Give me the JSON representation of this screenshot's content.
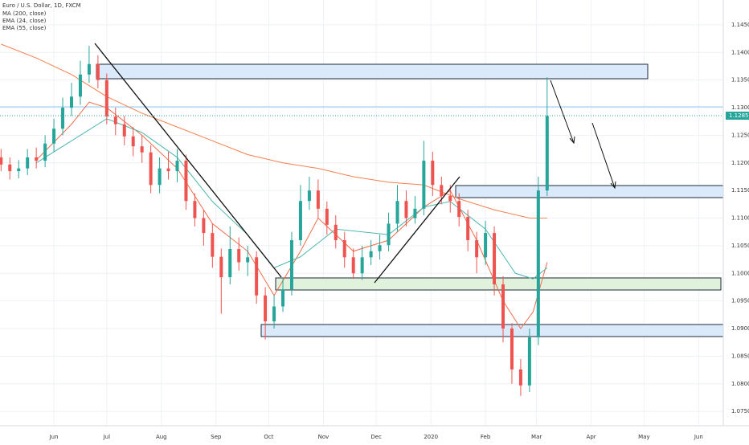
{
  "chart_data": {
    "type": "candlestick",
    "title": "Euro / U.S. Dollar, 1D, FXCM",
    "up_color": "#26a69a",
    "down_color": "#ef5350",
    "xlim": [
      -30.6,
      380
    ],
    "xticks": [
      {
        "value": 0,
        "label": "Jun"
      },
      {
        "value": 30,
        "label": "Jul"
      },
      {
        "value": 61,
        "label": "Aug"
      },
      {
        "value": 92,
        "label": "Sep"
      },
      {
        "value": 122,
        "label": "Oct"
      },
      {
        "value": 153,
        "label": "Nov"
      },
      {
        "value": 183,
        "label": "Dec"
      },
      {
        "value": 214,
        "label": "2020"
      },
      {
        "value": 245,
        "label": "Feb"
      },
      {
        "value": 274,
        "label": "Mar"
      },
      {
        "value": 305,
        "label": "Apr"
      },
      {
        "value": 335,
        "label": "May"
      },
      {
        "value": 366,
        "label": "Jun"
      }
    ],
    "ylim": [
      1.0724,
      1.1495
    ],
    "yticks": [
      {
        "value": 1.145,
        "label": "1.14500"
      },
      {
        "value": 1.14,
        "label": "1.14000"
      },
      {
        "value": 1.135,
        "label": "1.13500"
      },
      {
        "value": 1.13,
        "label": "1.13000"
      },
      {
        "value": 1.125,
        "label": "1.12500"
      },
      {
        "value": 1.12,
        "label": "1.12000"
      },
      {
        "value": 1.115,
        "label": "1.11500"
      },
      {
        "value": 1.11,
        "label": "1.11000"
      },
      {
        "value": 1.105,
        "label": "1.10500"
      },
      {
        "value": 1.1,
        "label": "1.10000"
      },
      {
        "value": 1.095,
        "label": "1.09500"
      },
      {
        "value": 1.09,
        "label": "1.09000"
      },
      {
        "value": 1.085,
        "label": "1.08500"
      },
      {
        "value": 1.08,
        "label": "1.08000"
      },
      {
        "value": 1.075,
        "label": "1.07500"
      }
    ],
    "grid": true,
    "last_price": {
      "value": 1.12855,
      "label": "1.12855"
    },
    "candles": {
      "x": [
        -30,
        -25,
        -20,
        -15,
        -10,
        -5,
        0,
        5,
        10,
        15,
        20,
        25,
        30,
        35,
        40,
        45,
        50,
        55,
        60,
        65,
        70,
        75,
        80,
        85,
        90,
        95,
        100,
        105,
        110,
        115,
        120,
        125,
        130,
        135,
        140,
        145,
        150,
        155,
        160,
        165,
        170,
        175,
        180,
        185,
        190,
        195,
        200,
        205,
        210,
        215,
        220,
        225,
        230,
        235,
        240,
        245,
        250,
        255,
        260,
        265,
        270,
        275,
        280
      ],
      "open": [
        1.121,
        1.1197,
        1.1185,
        1.119,
        1.121,
        1.1204,
        1.1235,
        1.1262,
        1.13,
        1.132,
        1.136,
        1.1379,
        1.135,
        1.1284,
        1.127,
        1.1248,
        1.123,
        1.1219,
        1.116,
        1.119,
        1.1185,
        1.1204,
        1.1131,
        1.11,
        1.1073,
        1.103,
        1.0993,
        1.1044,
        1.102,
        1.1029,
        1.096,
        1.0913,
        1.094,
        1.0971,
        1.106,
        1.1131,
        1.115,
        1.1117,
        1.1088,
        1.106,
        1.1029,
        1.1,
        1.1029,
        1.104,
        1.1051,
        1.109,
        1.1131,
        1.11,
        1.1117,
        1.1204,
        1.116,
        1.114,
        1.1131,
        1.1102,
        1.106,
        1.1029,
        1.1073,
        1.098,
        1.09,
        1.0826,
        1.0797,
        1.0884,
        1.115
      ],
      "high": [
        1.1225,
        1.121,
        1.1205,
        1.1225,
        1.1228,
        1.125,
        1.128,
        1.1318,
        1.1345,
        1.1385,
        1.1412,
        1.1395,
        1.1362,
        1.13,
        1.1285,
        1.1265,
        1.125,
        1.1232,
        1.121,
        1.122,
        1.1225,
        1.1215,
        1.1145,
        1.1115,
        1.109,
        1.1045,
        1.1085,
        1.1065,
        1.105,
        1.104,
        1.0975,
        1.096,
        1.099,
        1.1075,
        1.116,
        1.1175,
        1.117,
        1.113,
        1.1105,
        1.1075,
        1.1045,
        1.105,
        1.106,
        1.107,
        1.111,
        1.116,
        1.115,
        1.114,
        1.124,
        1.122,
        1.1175,
        1.116,
        1.1145,
        1.1115,
        1.1075,
        1.1095,
        1.1085,
        1.0995,
        1.091,
        1.0845,
        1.09,
        1.1175,
        1.1355
      ],
      "low": [
        1.1185,
        1.117,
        1.1172,
        1.1178,
        1.119,
        1.1192,
        1.122,
        1.125,
        1.1285,
        1.1305,
        1.1345,
        1.1335,
        1.127,
        1.125,
        1.1232,
        1.1212,
        1.12,
        1.1145,
        1.1145,
        1.117,
        1.1165,
        1.1115,
        1.1085,
        1.105,
        1.101,
        1.0927,
        1.098,
        1.1005,
        1.0995,
        1.0945,
        1.088,
        1.09,
        1.093,
        1.096,
        1.105,
        1.1115,
        1.11,
        1.107,
        1.1045,
        1.101,
        1.099,
        1.0988,
        1.1015,
        1.1025,
        1.104,
        1.1075,
        1.1085,
        1.109,
        1.1105,
        1.114,
        1.1125,
        1.111,
        1.1085,
        1.104,
        1.1,
        1.1015,
        1.096,
        1.0875,
        1.08,
        1.0778,
        1.0785,
        1.087,
        1.114
      ],
      "close": [
        1.1197,
        1.1185,
        1.119,
        1.121,
        1.1204,
        1.1235,
        1.1262,
        1.13,
        1.132,
        1.136,
        1.1379,
        1.135,
        1.1284,
        1.127,
        1.1248,
        1.123,
        1.1219,
        1.116,
        1.119,
        1.1185,
        1.1204,
        1.1131,
        1.11,
        1.1073,
        1.103,
        1.0993,
        1.1044,
        1.102,
        1.1029,
        1.096,
        1.0913,
        1.094,
        1.0971,
        1.106,
        1.1131,
        1.115,
        1.1117,
        1.1088,
        1.106,
        1.1029,
        1.1,
        1.1029,
        1.104,
        1.1051,
        1.109,
        1.1131,
        1.11,
        1.1117,
        1.1204,
        1.116,
        1.114,
        1.1131,
        1.1102,
        1.106,
        1.1029,
        1.1073,
        1.098,
        1.09,
        1.0826,
        1.0797,
        1.0884,
        1.115,
        1.1285
      ]
    },
    "series": [
      {
        "name": "MA (200, close)",
        "color": "#f57f4d",
        "x": [
          -30,
          -10,
          10,
          30,
          50,
          70,
          90,
          110,
          130,
          150,
          170,
          190,
          210,
          230,
          250,
          270,
          280
        ],
        "values": [
          1.1415,
          1.139,
          1.136,
          1.132,
          1.129,
          1.1265,
          1.124,
          1.1215,
          1.12,
          1.119,
          1.1175,
          1.1165,
          1.116,
          1.1135,
          1.1115,
          1.11,
          1.11
        ]
      },
      {
        "name": "EMA (24, close)",
        "color": "#ef6c4a",
        "x": [
          -10,
          10,
          20,
          30,
          50,
          70,
          90,
          110,
          125,
          140,
          150,
          170,
          190,
          210,
          225,
          240,
          255,
          265,
          272,
          280
        ],
        "values": [
          1.1205,
          1.127,
          1.131,
          1.13,
          1.125,
          1.119,
          1.109,
          1.104,
          1.096,
          1.104,
          1.11,
          1.104,
          1.106,
          1.112,
          1.115,
          1.106,
          1.095,
          1.09,
          1.093,
          1.102
        ]
      },
      {
        "name": "EMA (55, close)",
        "color": "#4db6ac",
        "x": [
          -10,
          10,
          30,
          50,
          70,
          90,
          110,
          125,
          140,
          160,
          190,
          210,
          225,
          245,
          262,
          272,
          280
        ],
        "values": [
          1.12,
          1.124,
          1.128,
          1.1255,
          1.121,
          1.113,
          1.107,
          1.101,
          1.103,
          1.108,
          1.107,
          1.112,
          1.113,
          1.108,
          1.1,
          1.099,
          1.101
        ]
      }
    ]
  }
}
